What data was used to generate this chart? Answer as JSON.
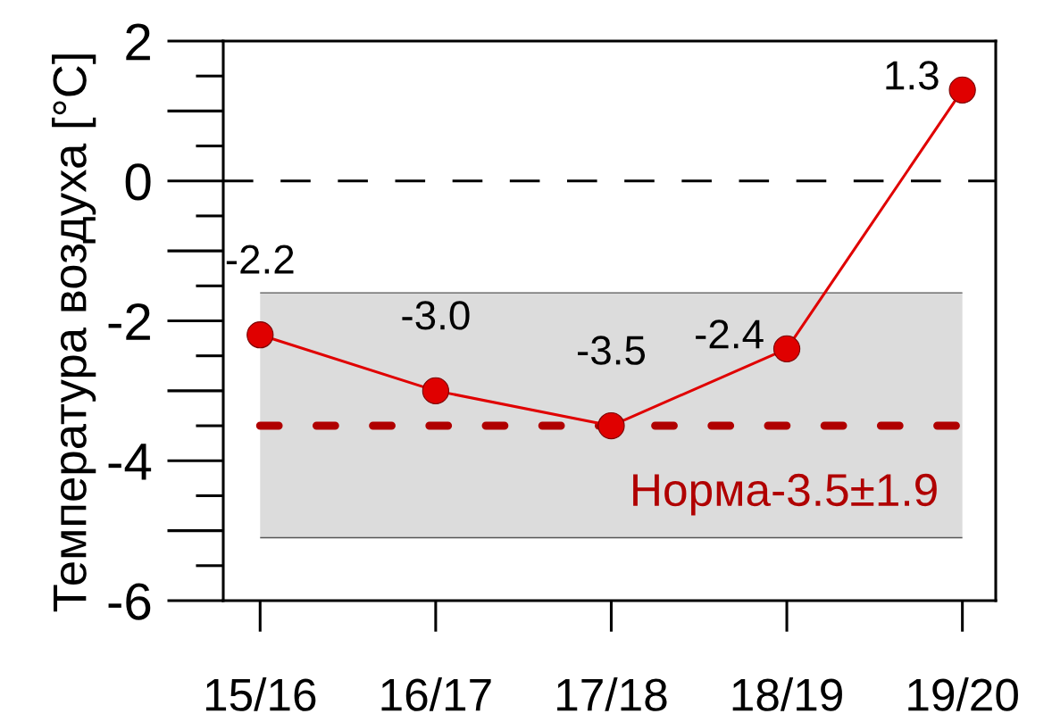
{
  "chart_data": {
    "type": "line",
    "ylabel": "Температура воздуха [°C]",
    "categories": [
      "15/16",
      "16/17",
      "17/18",
      "18/19",
      "19/20"
    ],
    "series": [
      {
        "color": "#e00000",
        "values": [
          -2.2,
          -3.0,
          -3.5,
          -2.4,
          1.3
        ],
        "value_labels": [
          "-2.2",
          "-3.0",
          "-3.5",
          "-2.4",
          "1.3"
        ]
      }
    ],
    "ylim": [
      -6,
      2
    ],
    "yticks": [
      -6,
      -4,
      -2,
      0,
      2
    ],
    "marker": "circle",
    "line_style": "solid",
    "ref_lines": [
      {
        "axis": "y",
        "value": 0,
        "color": "#000000",
        "line_style": "dashed"
      },
      {
        "axis": "y",
        "value": -3.5,
        "label": "Норма-3.5±1.9",
        "color": "#b00000",
        "line_style": "dashed"
      }
    ],
    "bands": [
      {
        "axis": "y",
        "from": -5.1,
        "to": -1.6,
        "color": "#dcdcdc"
      }
    ]
  }
}
